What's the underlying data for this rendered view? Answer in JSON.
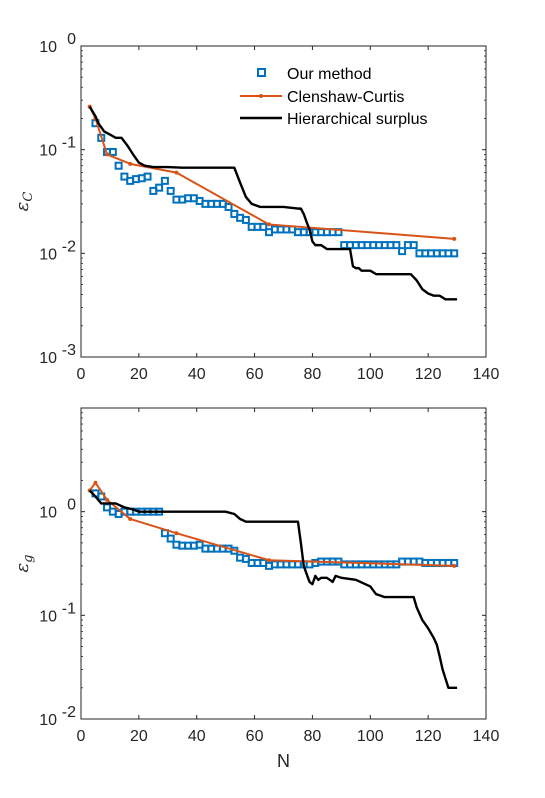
{
  "chart_data": [
    {
      "type": "line",
      "panel": "top",
      "xlabel": "",
      "ylabel_main": "ε",
      "ylabel_sub": "C",
      "xlim": [
        0,
        140
      ],
      "ylim": [
        0.001,
        1
      ],
      "yscale": "log",
      "x_ticks": [
        "0",
        "20",
        "40",
        "60",
        "80",
        "100",
        "120",
        "140"
      ],
      "y_ticks": [
        {
          "base": "10",
          "exp": "0"
        },
        {
          "base": "10",
          "exp": "-1"
        },
        {
          "base": "10",
          "exp": "-2"
        },
        {
          "base": "10",
          "exp": "-3"
        }
      ],
      "legend": "top-right",
      "series": [
        {
          "name": "Our method",
          "style": "squares",
          "color": "#0072BD",
          "x": [
            5,
            7,
            9,
            11,
            13,
            15,
            17,
            19,
            21,
            23,
            25,
            27,
            29,
            31,
            33,
            35,
            37,
            39,
            41,
            43,
            45,
            47,
            49,
            51,
            53,
            55,
            57,
            59,
            61,
            63,
            65,
            67,
            69,
            71,
            73,
            75,
            77,
            79,
            81,
            83,
            85,
            87,
            89,
            91,
            93,
            95,
            97,
            99,
            101,
            103,
            105,
            107,
            109,
            111,
            113,
            115,
            117,
            119,
            121,
            123,
            125,
            127,
            129
          ],
          "values": [
            0.18,
            0.13,
            0.095,
            0.095,
            0.07,
            0.055,
            0.05,
            0.052,
            0.053,
            0.055,
            0.04,
            0.043,
            0.05,
            0.04,
            0.033,
            0.033,
            0.034,
            0.034,
            0.032,
            0.03,
            0.03,
            0.03,
            0.03,
            0.028,
            0.024,
            0.022,
            0.021,
            0.018,
            0.018,
            0.018,
            0.016,
            0.017,
            0.017,
            0.017,
            0.017,
            0.016,
            0.016,
            0.016,
            0.016,
            0.016,
            0.016,
            0.016,
            0.016,
            0.012,
            0.012,
            0.012,
            0.012,
            0.012,
            0.012,
            0.012,
            0.012,
            0.012,
            0.012,
            0.0105,
            0.012,
            0.012,
            0.01,
            0.01,
            0.01,
            0.01,
            0.01,
            0.01,
            0.01
          ]
        },
        {
          "name": "Clenshaw-Curtis",
          "style": "line-dots",
          "color": "#D95319",
          "x": [
            3,
            5,
            9,
            17,
            33,
            65,
            129
          ],
          "values": [
            0.26,
            0.2,
            0.09,
            0.073,
            0.06,
            0.019,
            0.0138
          ]
        },
        {
          "name": "Hierarchical surplus",
          "style": "line",
          "color": "#000000",
          "x": [
            3,
            5,
            6,
            8,
            10,
            12,
            14,
            16,
            18,
            20,
            22,
            25,
            30,
            35,
            40,
            45,
            50,
            53,
            55,
            57,
            59,
            62,
            65,
            70,
            75,
            76,
            77,
            78,
            79,
            80,
            81,
            83,
            85,
            87,
            88,
            90,
            92,
            93,
            94,
            95,
            96,
            97,
            99,
            100,
            102,
            104,
            106,
            108,
            110,
            112,
            113,
            114,
            116,
            118,
            120,
            122,
            124,
            126,
            128,
            130
          ],
          "values": [
            0.26,
            0.21,
            0.18,
            0.15,
            0.14,
            0.13,
            0.13,
            0.11,
            0.09,
            0.075,
            0.07,
            0.068,
            0.068,
            0.067,
            0.067,
            0.067,
            0.067,
            0.067,
            0.048,
            0.035,
            0.03,
            0.028,
            0.028,
            0.028,
            0.027,
            0.027,
            0.024,
            0.02,
            0.017,
            0.013,
            0.012,
            0.012,
            0.011,
            0.011,
            0.011,
            0.011,
            0.011,
            0.011,
            0.0075,
            0.0072,
            0.0072,
            0.0068,
            0.0068,
            0.0068,
            0.0063,
            0.0063,
            0.0063,
            0.0063,
            0.0063,
            0.0063,
            0.0063,
            0.0063,
            0.0055,
            0.0045,
            0.0041,
            0.0039,
            0.0039,
            0.0036,
            0.0036,
            0.0036
          ]
        }
      ]
    },
    {
      "type": "line",
      "panel": "bottom",
      "xlabel": "N",
      "ylabel_main": "ε",
      "ylabel_sub": "g",
      "xlim": [
        0,
        140
      ],
      "ylim": [
        0.01,
        10
      ],
      "yscale": "log",
      "x_ticks": [
        "0",
        "20",
        "40",
        "60",
        "80",
        "100",
        "120",
        "140"
      ],
      "y_ticks": [
        {
          "base": "10",
          "exp": "0"
        },
        {
          "base": "10",
          "exp": "-1"
        },
        {
          "base": "10",
          "exp": "-2"
        }
      ],
      "series": [
        {
          "name": "Our method",
          "style": "squares",
          "color": "#0072BD",
          "x": [
            5,
            7,
            9,
            11,
            13,
            15,
            17,
            19,
            21,
            23,
            25,
            27,
            29,
            31,
            33,
            35,
            37,
            39,
            41,
            43,
            45,
            47,
            49,
            51,
            53,
            55,
            57,
            59,
            61,
            63,
            65,
            67,
            69,
            71,
            73,
            75,
            77,
            79,
            81,
            83,
            85,
            87,
            89,
            91,
            93,
            95,
            97,
            99,
            101,
            103,
            105,
            107,
            109,
            111,
            113,
            115,
            117,
            119,
            121,
            123,
            125,
            127,
            129
          ],
          "values": [
            1.5,
            1.4,
            1.1,
            1.0,
            0.95,
            1.0,
            1.0,
            1.0,
            1.0,
            1.0,
            1.0,
            1.0,
            0.62,
            0.55,
            0.48,
            0.47,
            0.47,
            0.47,
            0.48,
            0.44,
            0.44,
            0.44,
            0.44,
            0.44,
            0.42,
            0.36,
            0.35,
            0.32,
            0.32,
            0.32,
            0.3,
            0.31,
            0.31,
            0.31,
            0.31,
            0.31,
            0.31,
            0.31,
            0.32,
            0.33,
            0.33,
            0.33,
            0.33,
            0.31,
            0.31,
            0.31,
            0.31,
            0.31,
            0.31,
            0.31,
            0.31,
            0.31,
            0.31,
            0.33,
            0.33,
            0.33,
            0.33,
            0.32,
            0.32,
            0.32,
            0.32,
            0.32,
            0.32
          ]
        },
        {
          "name": "Clenshaw-Curtis",
          "style": "line-dots",
          "color": "#D95319",
          "x": [
            3,
            5,
            9,
            17,
            33,
            65,
            129
          ],
          "values": [
            1.6,
            1.9,
            1.3,
            0.85,
            0.62,
            0.34,
            0.3
          ]
        },
        {
          "name": "Hierarchical surplus",
          "style": "line",
          "color": "#000000",
          "x": [
            3,
            5,
            7,
            9,
            12,
            15,
            18,
            20,
            25,
            30,
            40,
            50,
            53,
            55,
            57,
            60,
            65,
            70,
            75,
            76,
            77,
            78,
            79,
            80,
            81,
            82,
            83,
            85,
            87,
            88,
            90,
            95,
            100,
            102,
            105,
            110,
            115,
            116,
            118,
            120,
            122,
            123,
            124,
            125,
            127,
            128,
            130
          ],
          "values": [
            1.6,
            1.4,
            1.2,
            1.2,
            1.2,
            1.1,
            1.05,
            1.0,
            1.0,
            1.0,
            1.0,
            1.0,
            0.95,
            0.85,
            0.8,
            0.8,
            0.8,
            0.8,
            0.8,
            0.5,
            0.3,
            0.25,
            0.21,
            0.2,
            0.24,
            0.22,
            0.23,
            0.23,
            0.21,
            0.24,
            0.23,
            0.22,
            0.19,
            0.16,
            0.15,
            0.15,
            0.15,
            0.12,
            0.09,
            0.075,
            0.06,
            0.052,
            0.04,
            0.03,
            0.02,
            0.02,
            0.02
          ]
        }
      ]
    }
  ]
}
